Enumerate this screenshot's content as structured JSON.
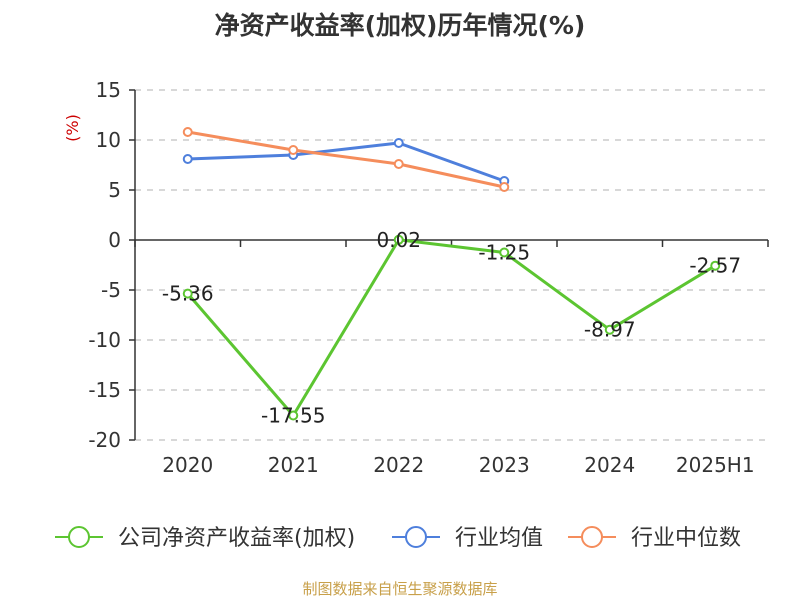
{
  "chart_data": {
    "type": "line",
    "title": "净资产收益率(加权)历年情况(%)",
    "ylabel": "(%)",
    "categories": [
      "2020",
      "2021",
      "2022",
      "2023",
      "2024",
      "2025H1"
    ],
    "ylim": [
      -20,
      15
    ],
    "yticks": [
      "15",
      "10",
      "5",
      "0",
      "-5",
      "-10",
      "-15",
      "-20"
    ],
    "grid": "horizontal-dashed",
    "legend_position": "bottom",
    "series": [
      {
        "name": "公司净资产收益率(加权)",
        "color": "#5cc531",
        "values": [
          -5.36,
          -17.55,
          0.02,
          -1.25,
          -8.97,
          -2.57
        ],
        "labels": [
          "-5.36",
          "-17.55",
          "0.02",
          "-1.25",
          "-8.97",
          "-2.57"
        ]
      },
      {
        "name": "行业均值",
        "color": "#4e7fdc",
        "values": [
          8.1,
          8.5,
          9.7,
          5.9,
          null,
          null
        ]
      },
      {
        "name": "行业中位数",
        "color": "#f58d5c",
        "values": [
          10.8,
          9.0,
          7.6,
          5.3,
          null,
          null
        ]
      }
    ]
  },
  "source_note": "制图数据来自恒生聚源数据库",
  "colors": {
    "axis": "#333333",
    "grid": "#cccccc",
    "ylabel": "#cc0000"
  }
}
